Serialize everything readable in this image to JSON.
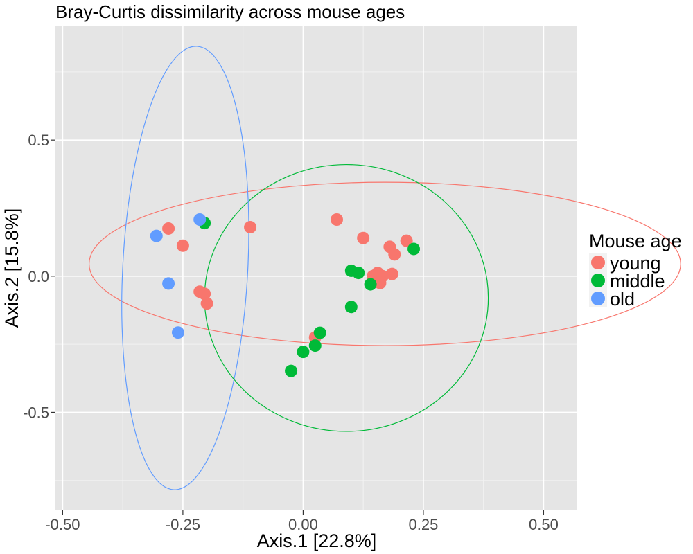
{
  "chart_data": {
    "type": "scatter",
    "title": "Bray-Curtis dissimilarity across mouse ages",
    "xlabel": "Axis.1   [22.8%]",
    "ylabel": "Axis.2   [15.8%]",
    "xlim": [
      -0.515,
      0.57
    ],
    "ylim": [
      -0.86,
      0.92
    ],
    "grid": true,
    "background": "#E5E5E5",
    "x_ticks": [
      {
        "value": -0.5,
        "label": "-0.50"
      },
      {
        "value": -0.25,
        "label": "-0.25"
      },
      {
        "value": 0.0,
        "label": "0.00"
      },
      {
        "value": 0.25,
        "label": "0.25"
      },
      {
        "value": 0.5,
        "label": "0.50"
      }
    ],
    "y_ticks": [
      {
        "value": -0.5,
        "label": "-0.5"
      },
      {
        "value": 0.0,
        "label": "0.0"
      },
      {
        "value": 0.5,
        "label": "0.5"
      }
    ],
    "legend": {
      "title": "Mouse age",
      "placement": "right",
      "entries": [
        "young",
        "middle",
        "old"
      ]
    },
    "series": [
      {
        "name": "young",
        "color": "#F8766D",
        "points": [
          [
            -0.28,
            0.175
          ],
          [
            -0.25,
            0.112
          ],
          [
            -0.215,
            -0.057
          ],
          [
            -0.205,
            -0.065
          ],
          [
            -0.2,
            -0.1
          ],
          [
            -0.11,
            0.18
          ],
          [
            0.07,
            0.208
          ],
          [
            0.125,
            0.14
          ],
          [
            0.18,
            0.108
          ],
          [
            0.19,
            0.08
          ],
          [
            0.215,
            0.13
          ],
          [
            0.145,
            0.0
          ],
          [
            0.155,
            0.012
          ],
          [
            0.165,
            0.0
          ],
          [
            0.185,
            0.008
          ],
          [
            0.16,
            -0.025
          ],
          [
            0.025,
            -0.225
          ]
        ]
      },
      {
        "name": "middle",
        "color": "#00BA38",
        "points": [
          [
            -0.205,
            0.195
          ],
          [
            0.1,
            0.02
          ],
          [
            0.115,
            0.012
          ],
          [
            0.14,
            -0.03
          ],
          [
            0.1,
            -0.113
          ],
          [
            0.23,
            0.1
          ],
          [
            0.035,
            -0.208
          ],
          [
            0.025,
            -0.255
          ],
          [
            0.0,
            -0.278
          ],
          [
            -0.025,
            -0.348
          ]
        ]
      },
      {
        "name": "old",
        "color": "#619CFF",
        "points": [
          [
            -0.305,
            0.148
          ],
          [
            -0.215,
            0.208
          ],
          [
            -0.28,
            -0.027
          ],
          [
            -0.26,
            -0.207
          ]
        ]
      }
    ],
    "ellipses": [
      {
        "group": "young",
        "cx": 0.17,
        "cy": 0.045,
        "rx": 0.615,
        "ry": 0.3,
        "angle": 0
      },
      {
        "group": "middle",
        "cx": 0.09,
        "cy": -0.08,
        "rx": 0.295,
        "ry": 0.49,
        "angle": 0
      },
      {
        "group": "old",
        "cx": -0.245,
        "cy": 0.03,
        "rx": 0.13,
        "ry": 0.815,
        "angle": 3
      }
    ]
  }
}
